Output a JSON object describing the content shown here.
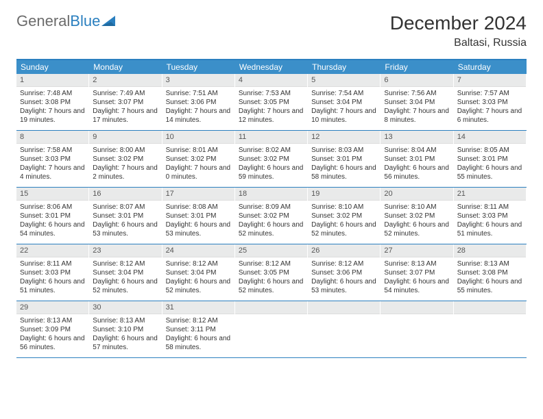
{
  "brand": {
    "first": "General",
    "second": "Blue"
  },
  "title": "December 2024",
  "location": "Baltasi, Russia",
  "colors": {
    "header_bg": "#3b8fc9",
    "header_text": "#ffffff",
    "border": "#2a7fbf",
    "daynum_bg": "#e9eaea",
    "text": "#333333",
    "logo_gray": "#6b6b6b",
    "logo_blue": "#2a7fbf",
    "page_bg": "#ffffff"
  },
  "day_names": [
    "Sunday",
    "Monday",
    "Tuesday",
    "Wednesday",
    "Thursday",
    "Friday",
    "Saturday"
  ],
  "weeks": [
    [
      {
        "n": "1",
        "sr": "7:48 AM",
        "ss": "3:08 PM",
        "dl": "7 hours and 19 minutes."
      },
      {
        "n": "2",
        "sr": "7:49 AM",
        "ss": "3:07 PM",
        "dl": "7 hours and 17 minutes."
      },
      {
        "n": "3",
        "sr": "7:51 AM",
        "ss": "3:06 PM",
        "dl": "7 hours and 14 minutes."
      },
      {
        "n": "4",
        "sr": "7:53 AM",
        "ss": "3:05 PM",
        "dl": "7 hours and 12 minutes."
      },
      {
        "n": "5",
        "sr": "7:54 AM",
        "ss": "3:04 PM",
        "dl": "7 hours and 10 minutes."
      },
      {
        "n": "6",
        "sr": "7:56 AM",
        "ss": "3:04 PM",
        "dl": "7 hours and 8 minutes."
      },
      {
        "n": "7",
        "sr": "7:57 AM",
        "ss": "3:03 PM",
        "dl": "7 hours and 6 minutes."
      }
    ],
    [
      {
        "n": "8",
        "sr": "7:58 AM",
        "ss": "3:03 PM",
        "dl": "7 hours and 4 minutes."
      },
      {
        "n": "9",
        "sr": "8:00 AM",
        "ss": "3:02 PM",
        "dl": "7 hours and 2 minutes."
      },
      {
        "n": "10",
        "sr": "8:01 AM",
        "ss": "3:02 PM",
        "dl": "7 hours and 0 minutes."
      },
      {
        "n": "11",
        "sr": "8:02 AM",
        "ss": "3:02 PM",
        "dl": "6 hours and 59 minutes."
      },
      {
        "n": "12",
        "sr": "8:03 AM",
        "ss": "3:01 PM",
        "dl": "6 hours and 58 minutes."
      },
      {
        "n": "13",
        "sr": "8:04 AM",
        "ss": "3:01 PM",
        "dl": "6 hours and 56 minutes."
      },
      {
        "n": "14",
        "sr": "8:05 AM",
        "ss": "3:01 PM",
        "dl": "6 hours and 55 minutes."
      }
    ],
    [
      {
        "n": "15",
        "sr": "8:06 AM",
        "ss": "3:01 PM",
        "dl": "6 hours and 54 minutes."
      },
      {
        "n": "16",
        "sr": "8:07 AM",
        "ss": "3:01 PM",
        "dl": "6 hours and 53 minutes."
      },
      {
        "n": "17",
        "sr": "8:08 AM",
        "ss": "3:01 PM",
        "dl": "6 hours and 53 minutes."
      },
      {
        "n": "18",
        "sr": "8:09 AM",
        "ss": "3:02 PM",
        "dl": "6 hours and 52 minutes."
      },
      {
        "n": "19",
        "sr": "8:10 AM",
        "ss": "3:02 PM",
        "dl": "6 hours and 52 minutes."
      },
      {
        "n": "20",
        "sr": "8:10 AM",
        "ss": "3:02 PM",
        "dl": "6 hours and 52 minutes."
      },
      {
        "n": "21",
        "sr": "8:11 AM",
        "ss": "3:03 PM",
        "dl": "6 hours and 51 minutes."
      }
    ],
    [
      {
        "n": "22",
        "sr": "8:11 AM",
        "ss": "3:03 PM",
        "dl": "6 hours and 51 minutes."
      },
      {
        "n": "23",
        "sr": "8:12 AM",
        "ss": "3:04 PM",
        "dl": "6 hours and 52 minutes."
      },
      {
        "n": "24",
        "sr": "8:12 AM",
        "ss": "3:04 PM",
        "dl": "6 hours and 52 minutes."
      },
      {
        "n": "25",
        "sr": "8:12 AM",
        "ss": "3:05 PM",
        "dl": "6 hours and 52 minutes."
      },
      {
        "n": "26",
        "sr": "8:12 AM",
        "ss": "3:06 PM",
        "dl": "6 hours and 53 minutes."
      },
      {
        "n": "27",
        "sr": "8:13 AM",
        "ss": "3:07 PM",
        "dl": "6 hours and 54 minutes."
      },
      {
        "n": "28",
        "sr": "8:13 AM",
        "ss": "3:08 PM",
        "dl": "6 hours and 55 minutes."
      }
    ],
    [
      {
        "n": "29",
        "sr": "8:13 AM",
        "ss": "3:09 PM",
        "dl": "6 hours and 56 minutes."
      },
      {
        "n": "30",
        "sr": "8:13 AM",
        "ss": "3:10 PM",
        "dl": "6 hours and 57 minutes."
      },
      {
        "n": "31",
        "sr": "8:12 AM",
        "ss": "3:11 PM",
        "dl": "6 hours and 58 minutes."
      },
      {
        "empty": true
      },
      {
        "empty": true
      },
      {
        "empty": true
      },
      {
        "empty": true
      }
    ]
  ],
  "labels": {
    "sunrise_prefix": "Sunrise: ",
    "sunset_prefix": "Sunset: ",
    "daylight_prefix": "Daylight: "
  }
}
